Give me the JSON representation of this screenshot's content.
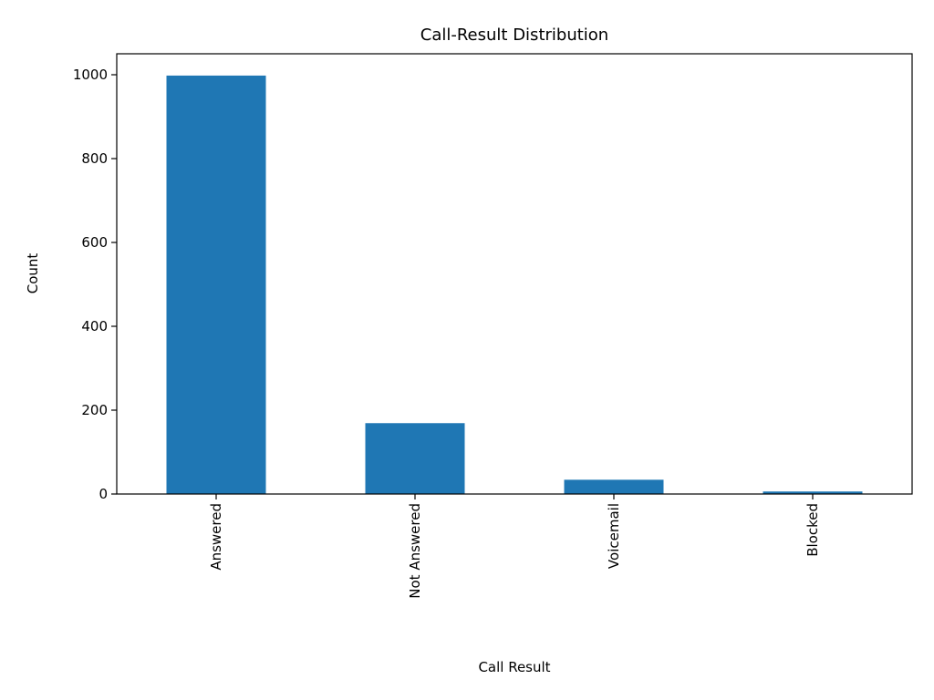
{
  "chart_data": {
    "type": "bar",
    "title": "Call-Result Distribution",
    "xlabel": "Call Result",
    "ylabel": "Count",
    "categories": [
      "Answered",
      "Not Answered",
      "Voicemail",
      "Blocked"
    ],
    "values": [
      998,
      169,
      34,
      6
    ],
    "ylim": [
      0,
      1050
    ],
    "yticks": [
      0,
      200,
      400,
      600,
      800,
      1000
    ],
    "bar_color": "#1f77b4",
    "grid": false,
    "legend": "none"
  }
}
